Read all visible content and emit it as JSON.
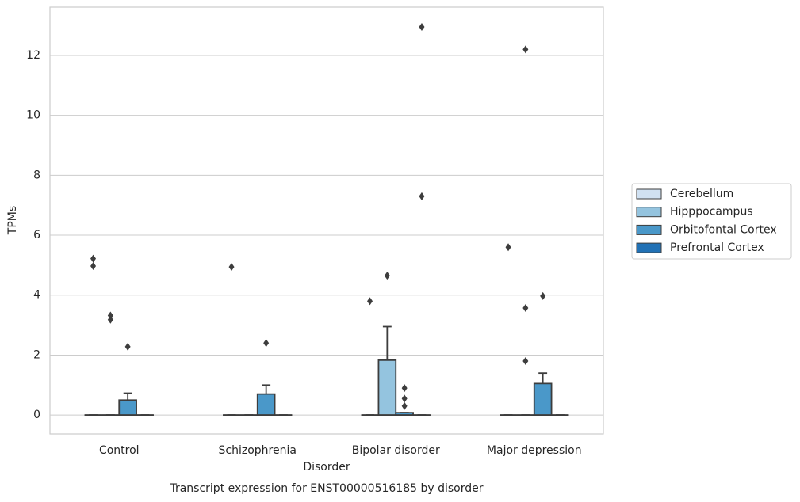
{
  "chart_data": {
    "type": "box",
    "title": "Transcript expression for ENST00000516185 by disorder",
    "xlabel": "Disorder",
    "ylabel": "TPMs",
    "categories": [
      "Control",
      "Schizophrenia",
      "Bipolar disorder",
      "Major depression"
    ],
    "ylim": [
      -0.63,
      13.61
    ],
    "yticks": [
      0,
      2,
      4,
      6,
      8,
      10,
      12
    ],
    "grid": true,
    "legend": "right",
    "series": [
      {
        "name": "Cerebellum",
        "color": "#d0e1f2",
        "boxes": [
          {
            "low": 0,
            "q1": 0,
            "median": 0,
            "q3": 0,
            "high": 0,
            "outliers": [
              5.22,
              4.97
            ]
          },
          {
            "low": 0,
            "q1": 0,
            "median": 0,
            "q3": 0,
            "high": 0,
            "outliers": [
              4.94
            ]
          },
          {
            "low": 0,
            "q1": 0,
            "median": 0,
            "q3": 0,
            "high": 0,
            "outliers": [
              3.8
            ]
          },
          {
            "low": 0,
            "q1": 0,
            "median": 0,
            "q3": 0,
            "high": 0,
            "outliers": [
              5.6
            ]
          }
        ]
      },
      {
        "name": "Hipppocampus",
        "color": "#94c4df",
        "boxes": [
          {
            "low": 0,
            "q1": 0,
            "median": 0,
            "q3": 0,
            "high": 0,
            "outliers": [
              3.32,
              3.18
            ]
          },
          {
            "low": 0,
            "q1": 0,
            "median": 0,
            "q3": 0,
            "high": 0,
            "outliers": []
          },
          {
            "low": 0,
            "q1": 0,
            "median": 0,
            "q3": 1.83,
            "high": 2.95,
            "outliers": [
              4.65
            ]
          },
          {
            "low": 0,
            "q1": 0,
            "median": 0,
            "q3": 0,
            "high": 0,
            "outliers": [
              12.2,
              3.57,
              1.8
            ]
          }
        ]
      },
      {
        "name": "Orbitofontal Cortex",
        "color": "#4a98c9",
        "boxes": [
          {
            "low": 0,
            "q1": 0,
            "median": 0,
            "q3": 0.5,
            "high": 0.73,
            "outliers": [
              2.28
            ]
          },
          {
            "low": 0,
            "q1": 0,
            "median": 0,
            "q3": 0.7,
            "high": 1.0,
            "outliers": [
              2.4
            ]
          },
          {
            "low": 0,
            "q1": 0,
            "median": 0,
            "q3": 0.08,
            "high": 0.08,
            "outliers": [
              0.9,
              0.55,
              0.3
            ]
          },
          {
            "low": 0,
            "q1": 0,
            "median": 0,
            "q3": 1.05,
            "high": 1.4,
            "outliers": [
              3.97
            ]
          }
        ]
      },
      {
        "name": "Prefrontal Cortex",
        "color": "#2171b5",
        "boxes": [
          {
            "low": 0,
            "q1": 0,
            "median": 0,
            "q3": 0,
            "high": 0,
            "outliers": []
          },
          {
            "low": 0,
            "q1": 0,
            "median": 0,
            "q3": 0,
            "high": 0,
            "outliers": []
          },
          {
            "low": 0,
            "q1": 0,
            "median": 0,
            "q3": 0,
            "high": 0,
            "outliers": [
              12.95,
              7.3
            ]
          },
          {
            "low": 0,
            "q1": 0,
            "median": 0,
            "q3": 0,
            "high": 0,
            "outliers": []
          }
        ]
      }
    ]
  }
}
